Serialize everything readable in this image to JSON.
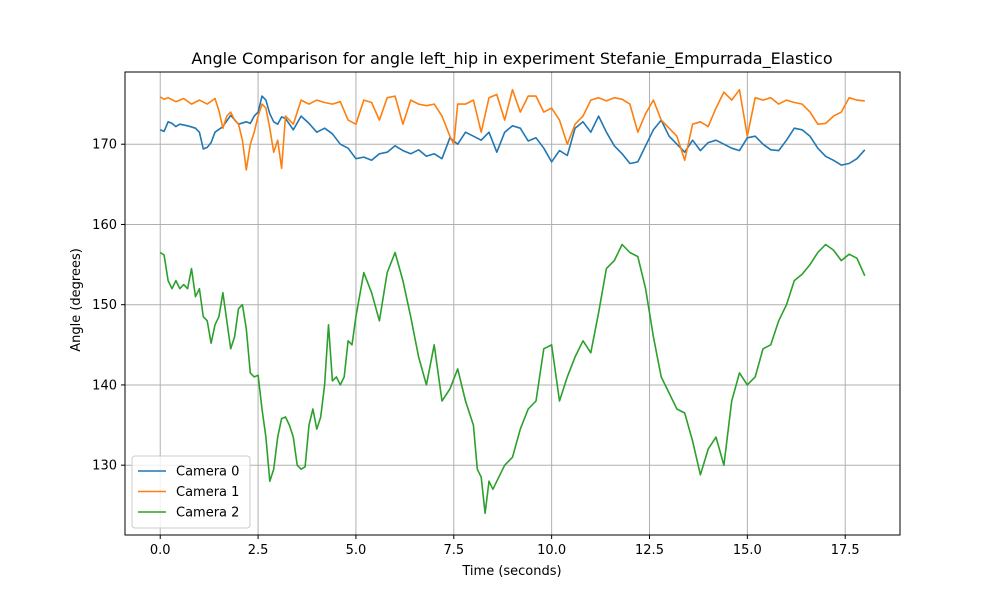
{
  "chart_data": {
    "type": "line",
    "title": "Angle Comparison for angle left_hip in experiment Stefanie_Empurrada_Elastico",
    "xlabel": "Time (seconds)",
    "ylabel": "Angle (degrees)",
    "xlim": [
      -0.9,
      18.9
    ],
    "ylim": [
      121.3,
      179.0
    ],
    "xticks": [
      0.0,
      2.5,
      5.0,
      7.5,
      10.0,
      12.5,
      15.0,
      17.5
    ],
    "xtick_labels": [
      "0.0",
      "2.5",
      "5.0",
      "7.5",
      "10.0",
      "12.5",
      "15.0",
      "17.5"
    ],
    "yticks": [
      130,
      140,
      150,
      160,
      170
    ],
    "ytick_labels": [
      "130",
      "140",
      "150",
      "160",
      "170"
    ],
    "grid": true,
    "legend_position": "lower-left",
    "series": [
      {
        "name": "Camera 0",
        "color": "#1f77b4",
        "x": [
          0.0,
          0.1,
          0.2,
          0.3,
          0.4,
          0.5,
          0.7,
          0.9,
          1.0,
          1.1,
          1.2,
          1.3,
          1.4,
          1.6,
          1.8,
          2.0,
          2.2,
          2.3,
          2.4,
          2.5,
          2.6,
          2.7,
          2.8,
          2.9,
          3.0,
          3.1,
          3.2,
          3.4,
          3.6,
          3.8,
          4.0,
          4.2,
          4.4,
          4.6,
          4.8,
          5.0,
          5.2,
          5.4,
          5.6,
          5.8,
          6.0,
          6.2,
          6.4,
          6.6,
          6.8,
          7.0,
          7.2,
          7.4,
          7.6,
          7.8,
          8.0,
          8.2,
          8.4,
          8.6,
          8.8,
          9.0,
          9.2,
          9.4,
          9.6,
          9.8,
          10.0,
          10.2,
          10.4,
          10.6,
          10.8,
          11.0,
          11.2,
          11.4,
          11.6,
          11.8,
          12.0,
          12.2,
          12.4,
          12.6,
          12.8,
          13.0,
          13.2,
          13.4,
          13.6,
          13.8,
          14.0,
          14.2,
          14.4,
          14.6,
          14.8,
          15.0,
          15.2,
          15.4,
          15.6,
          15.8,
          16.0,
          16.2,
          16.4,
          16.6,
          16.8,
          17.0,
          17.2,
          17.4,
          17.6,
          17.8,
          18.0
        ],
        "values": [
          171.8,
          171.6,
          172.8,
          172.6,
          172.2,
          172.5,
          172.3,
          172.0,
          171.5,
          169.4,
          169.6,
          170.2,
          171.5,
          172.2,
          173.6,
          172.5,
          172.8,
          172.6,
          173.5,
          174.0,
          176.0,
          175.5,
          173.8,
          172.8,
          172.5,
          173.4,
          173.2,
          171.8,
          173.5,
          172.6,
          171.5,
          172.0,
          171.3,
          170.0,
          169.5,
          168.2,
          168.4,
          168.0,
          168.8,
          169.0,
          169.8,
          169.2,
          168.8,
          169.3,
          168.5,
          168.8,
          168.2,
          170.8,
          170.0,
          171.5,
          171.0,
          170.5,
          171.5,
          169.0,
          171.5,
          172.3,
          172.0,
          170.4,
          170.8,
          169.5,
          167.8,
          169.2,
          168.6,
          172.0,
          172.8,
          171.5,
          173.5,
          171.5,
          169.8,
          168.8,
          167.6,
          167.8,
          169.8,
          171.8,
          173.0,
          171.0,
          170.0,
          169.0,
          170.5,
          169.2,
          170.2,
          170.5,
          170.0,
          169.5,
          169.2,
          170.8,
          171.0,
          170.0,
          169.3,
          169.2,
          170.5,
          172.0,
          171.8,
          171.0,
          169.5,
          168.5,
          168.0,
          167.4,
          167.6,
          168.2,
          169.3
        ]
      },
      {
        "name": "Camera 1",
        "color": "#ff7f0e",
        "x": [
          0.0,
          0.1,
          0.2,
          0.4,
          0.6,
          0.8,
          1.0,
          1.2,
          1.4,
          1.5,
          1.6,
          1.7,
          1.8,
          1.9,
          2.0,
          2.1,
          2.2,
          2.3,
          2.4,
          2.5,
          2.6,
          2.7,
          2.8,
          2.9,
          3.0,
          3.1,
          3.2,
          3.4,
          3.6,
          3.8,
          4.0,
          4.2,
          4.4,
          4.6,
          4.8,
          5.0,
          5.2,
          5.4,
          5.6,
          5.8,
          6.0,
          6.2,
          6.4,
          6.6,
          6.8,
          7.0,
          7.2,
          7.4,
          7.5,
          7.6,
          7.8,
          8.0,
          8.2,
          8.4,
          8.6,
          8.8,
          9.0,
          9.2,
          9.4,
          9.6,
          9.8,
          10.0,
          10.2,
          10.4,
          10.6,
          10.8,
          11.0,
          11.2,
          11.4,
          11.6,
          11.8,
          12.0,
          12.2,
          12.4,
          12.6,
          12.8,
          13.0,
          13.2,
          13.4,
          13.6,
          13.8,
          14.0,
          14.2,
          14.4,
          14.6,
          14.8,
          15.0,
          15.2,
          15.4,
          15.6,
          15.8,
          16.0,
          16.2,
          16.4,
          16.6,
          16.8,
          17.0,
          17.2,
          17.4,
          17.6,
          17.8,
          18.0
        ],
        "values": [
          175.9,
          175.6,
          175.8,
          175.3,
          175.7,
          175.0,
          175.5,
          175.0,
          175.7,
          174.2,
          172.0,
          173.5,
          174.0,
          173.0,
          172.5,
          170.5,
          166.8,
          170.0,
          171.5,
          173.5,
          175.0,
          174.5,
          172.0,
          169.0,
          170.5,
          167.0,
          173.5,
          172.5,
          175.5,
          175.0,
          175.5,
          175.2,
          175.0,
          175.3,
          173.0,
          172.5,
          175.5,
          175.2,
          173.0,
          175.8,
          176.0,
          172.5,
          175.5,
          175.0,
          174.8,
          175.0,
          173.5,
          171.0,
          170.0,
          175.0,
          175.0,
          175.5,
          171.5,
          175.8,
          176.2,
          173.0,
          176.8,
          174.0,
          176.0,
          176.0,
          174.0,
          174.5,
          173.0,
          170.0,
          172.5,
          173.5,
          175.5,
          175.8,
          175.4,
          175.8,
          175.6,
          175.0,
          171.5,
          173.8,
          175.5,
          173.0,
          172.0,
          171.0,
          168.0,
          172.5,
          172.8,
          172.2,
          174.5,
          176.5,
          175.5,
          176.8,
          171.0,
          175.8,
          175.5,
          175.8,
          175.0,
          175.5,
          175.2,
          175.0,
          174.0,
          172.5,
          172.6,
          173.5,
          174.0,
          175.8,
          175.5,
          175.4
        ]
      },
      {
        "name": "Camera 2",
        "color": "#2ca02c",
        "x": [
          0.0,
          0.1,
          0.2,
          0.3,
          0.4,
          0.5,
          0.6,
          0.7,
          0.8,
          0.9,
          1.0,
          1.1,
          1.2,
          1.3,
          1.4,
          1.5,
          1.6,
          1.7,
          1.8,
          1.9,
          2.0,
          2.1,
          2.2,
          2.3,
          2.4,
          2.5,
          2.6,
          2.7,
          2.8,
          2.9,
          3.0,
          3.1,
          3.2,
          3.3,
          3.4,
          3.5,
          3.6,
          3.7,
          3.8,
          3.9,
          4.0,
          4.1,
          4.2,
          4.3,
          4.4,
          4.5,
          4.6,
          4.7,
          4.8,
          4.9,
          5.0,
          5.2,
          5.4,
          5.6,
          5.8,
          6.0,
          6.2,
          6.4,
          6.6,
          6.8,
          7.0,
          7.2,
          7.4,
          7.6,
          7.8,
          8.0,
          8.1,
          8.2,
          8.3,
          8.4,
          8.5,
          8.6,
          8.8,
          9.0,
          9.2,
          9.4,
          9.6,
          9.8,
          10.0,
          10.2,
          10.4,
          10.6,
          10.8,
          11.0,
          11.2,
          11.4,
          11.6,
          11.8,
          12.0,
          12.2,
          12.4,
          12.6,
          12.8,
          13.0,
          13.2,
          13.4,
          13.6,
          13.8,
          14.0,
          14.2,
          14.4,
          14.6,
          14.8,
          15.0,
          15.2,
          15.4,
          15.6,
          15.8,
          16.0,
          16.2,
          16.4,
          16.6,
          16.8,
          17.0,
          17.2,
          17.4,
          17.6,
          17.8,
          18.0
        ],
        "values": [
          156.5,
          156.2,
          153.0,
          152.0,
          153.0,
          152.0,
          152.5,
          152.0,
          154.5,
          151.0,
          152.0,
          148.5,
          148.0,
          145.2,
          147.5,
          148.5,
          151.5,
          148.0,
          144.5,
          146.0,
          149.5,
          150.0,
          147.0,
          141.5,
          141.0,
          141.2,
          137.0,
          133.5,
          128.0,
          129.5,
          133.5,
          135.8,
          136.0,
          135.0,
          133.5,
          130.0,
          129.5,
          129.8,
          135.0,
          137.0,
          134.5,
          136.0,
          140.0,
          147.5,
          140.5,
          141.0,
          140.0,
          141.0,
          145.5,
          145.0,
          148.5,
          154.0,
          151.5,
          148.0,
          154.0,
          156.5,
          153.0,
          148.5,
          143.5,
          140.0,
          145.0,
          138.0,
          139.5,
          142.0,
          138.0,
          135.0,
          129.5,
          128.5,
          124.0,
          128.0,
          127.0,
          128.0,
          130.0,
          131.0,
          134.5,
          137.0,
          138.0,
          144.5,
          145.0,
          138.0,
          141.0,
          143.5,
          145.5,
          144.0,
          149.0,
          154.5,
          155.5,
          157.5,
          156.5,
          156.0,
          152.0,
          146.0,
          141.0,
          139.0,
          137.0,
          136.5,
          133.0,
          128.8,
          132.0,
          133.5,
          130.0,
          138.0,
          141.5,
          140.0,
          141.0,
          144.5,
          145.0,
          148.0,
          150.0,
          153.0,
          153.8,
          155.0,
          156.5,
          157.5,
          156.8,
          155.5,
          156.3,
          155.8,
          153.6
        ]
      }
    ]
  }
}
